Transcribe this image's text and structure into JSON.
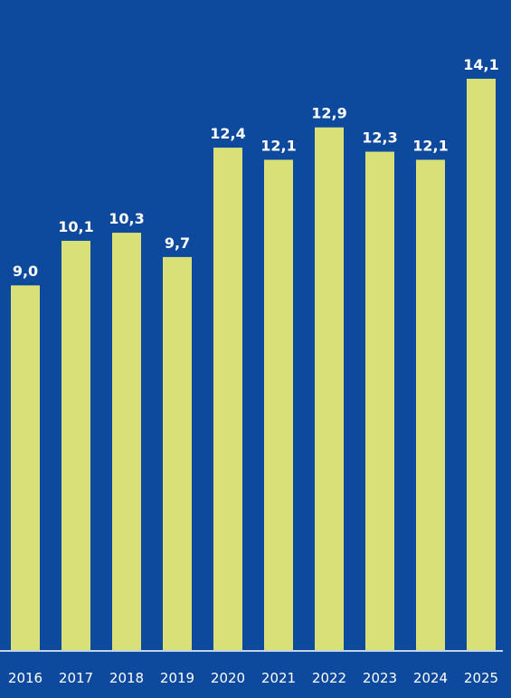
{
  "chart_data": {
    "type": "bar",
    "categories": [
      "2016",
      "2017",
      "2018",
      "2019",
      "2020",
      "2021",
      "2022",
      "2023",
      "2024",
      "2025"
    ],
    "values": [
      9.0,
      10.1,
      10.3,
      9.7,
      12.4,
      12.1,
      12.9,
      12.3,
      12.1,
      14.1
    ],
    "value_labels": [
      "9,0",
      "10,1",
      "10,3",
      "9,7",
      "12,4",
      "12,1",
      "12,9",
      "12,3",
      "12,1",
      "14,1"
    ],
    "color": "#d8e077"
  }
}
